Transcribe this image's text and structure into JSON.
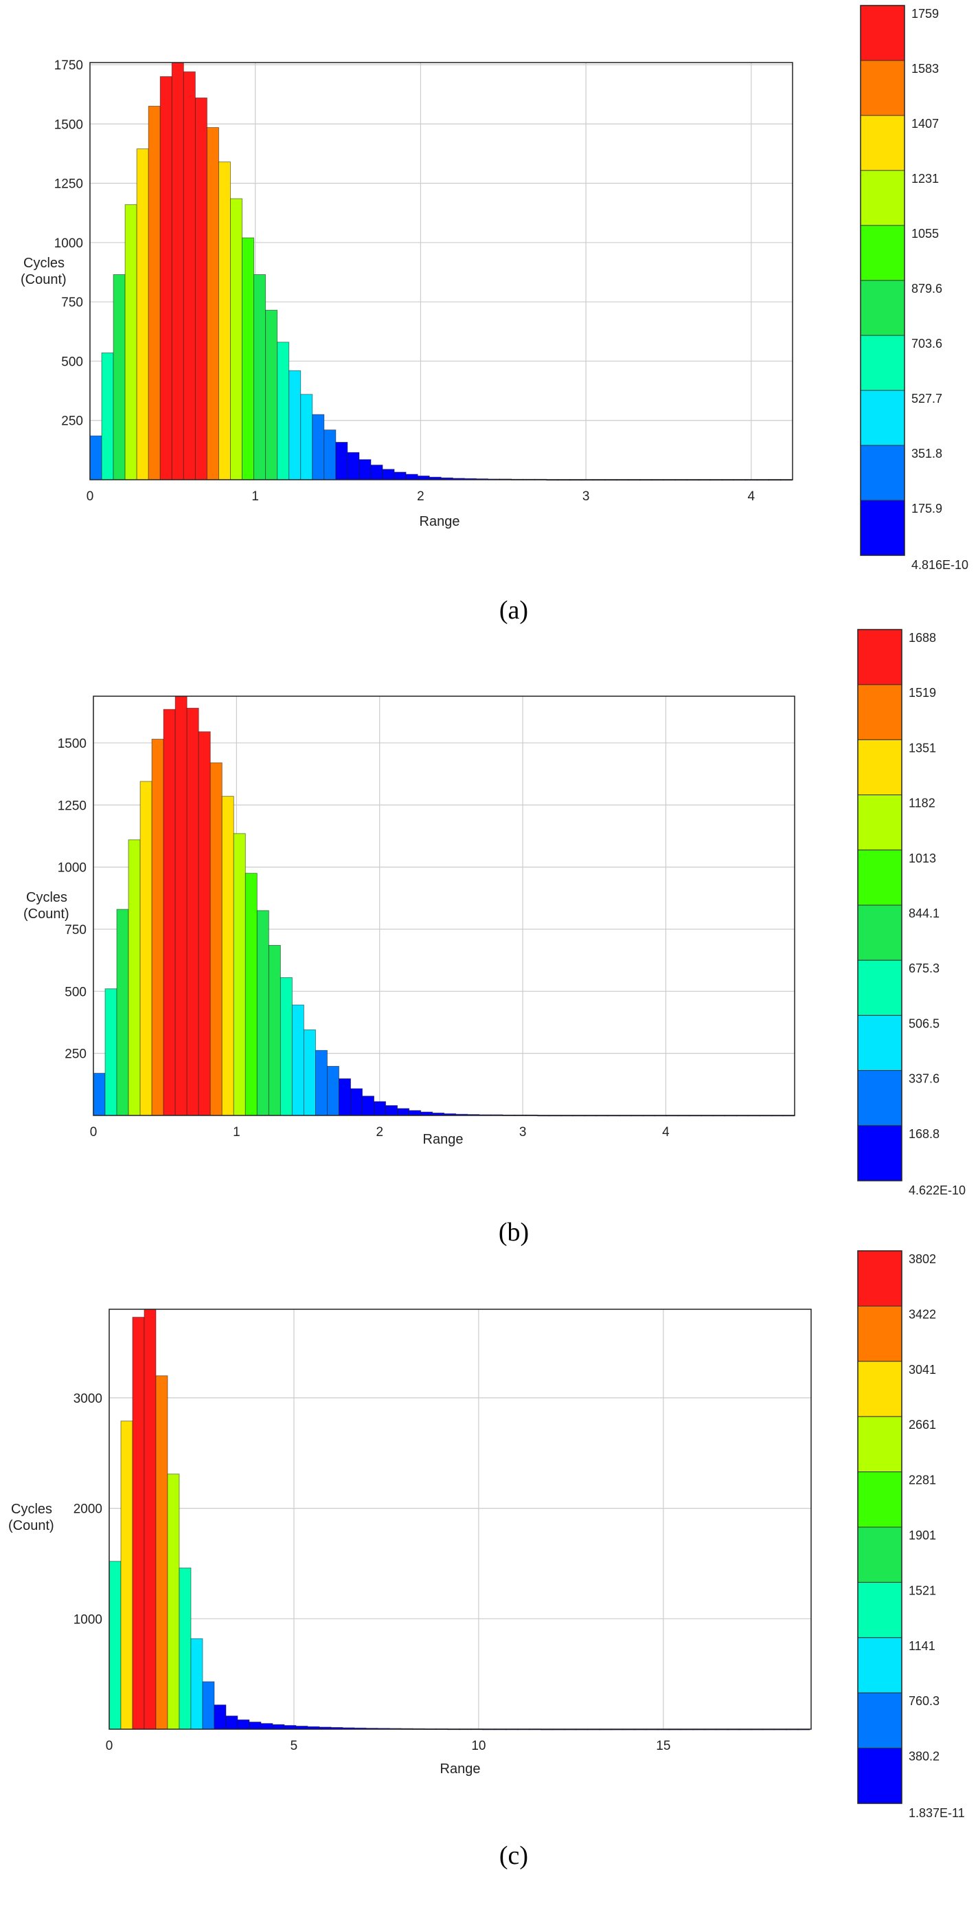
{
  "chart_data": [
    {
      "type": "bar",
      "caption": "(a)",
      "xlabel": "Range",
      "ylabel": [
        "Cycles",
        "(Count)"
      ],
      "xlim": [
        0,
        4.25
      ],
      "ylim": [
        0,
        1759
      ],
      "xticks": [
        0,
        1,
        2,
        3,
        4
      ],
      "yticks": [
        250,
        500,
        750,
        1000,
        1250,
        1500,
        1750
      ],
      "bin_width": 0.0708,
      "values": [
        185,
        535,
        865,
        1160,
        1395,
        1575,
        1700,
        1759,
        1720,
        1610,
        1485,
        1340,
        1185,
        1020,
        865,
        715,
        580,
        460,
        360,
        275,
        210,
        158,
        115,
        85,
        62,
        44,
        32,
        23,
        16,
        11,
        8,
        6,
        5,
        4,
        3,
        3,
        2,
        2,
        2,
        1,
        1,
        1,
        1,
        1,
        1,
        1,
        1,
        1,
        1,
        1,
        1,
        1,
        1,
        1,
        1,
        1,
        1,
        1,
        1,
        1
      ],
      "colorbar": {
        "labels": [
          "1759",
          "1583",
          "1407",
          "1231",
          "1055",
          "879.6",
          "703.6",
          "527.7",
          "351.8",
          "175.9",
          "4.816E-10"
        ],
        "colors": [
          "#ff1a1a",
          "#ff7a00",
          "#ffe000",
          "#b4ff00",
          "#3cff00",
          "#1ee650",
          "#00ffb0",
          "#00e6ff",
          "#0078ff",
          "#0000ff"
        ]
      }
    },
    {
      "type": "bar",
      "caption": "(b)",
      "xlabel": "Range",
      "ylabel": [
        "Cycles",
        "(Count)"
      ],
      "xlim": [
        0,
        4.9
      ],
      "ylim": [
        0,
        1688
      ],
      "xticks": [
        0,
        1,
        2,
        3,
        4
      ],
      "yticks": [
        250,
        500,
        750,
        1000,
        1250,
        1500
      ],
      "bin_width": 0.0817,
      "values": [
        170,
        510,
        830,
        1110,
        1345,
        1515,
        1635,
        1688,
        1640,
        1545,
        1420,
        1285,
        1135,
        975,
        825,
        685,
        555,
        445,
        345,
        262,
        198,
        148,
        108,
        78,
        56,
        40,
        28,
        20,
        14,
        10,
        7,
        5,
        4,
        3,
        3,
        2,
        2,
        2,
        1,
        1,
        1,
        1,
        1,
        1,
        1,
        1,
        1,
        1,
        1,
        1,
        1,
        1,
        1,
        1,
        1,
        1,
        1,
        1,
        1,
        1
      ],
      "colorbar": {
        "labels": [
          "1688",
          "1519",
          "1351",
          "1182",
          "1013",
          "844.1",
          "675.3",
          "506.5",
          "337.6",
          "168.8",
          "4.622E-10"
        ],
        "colors": [
          "#ff1a1a",
          "#ff7a00",
          "#ffe000",
          "#b4ff00",
          "#3cff00",
          "#1ee650",
          "#00ffb0",
          "#00e6ff",
          "#0078ff",
          "#0000ff"
        ]
      }
    },
    {
      "type": "bar",
      "caption": "(c)",
      "xlabel": "Range",
      "ylabel": [
        "Cycles",
        "(Count)"
      ],
      "xlim": [
        0,
        19
      ],
      "ylim": [
        0,
        3802
      ],
      "xticks": [
        0,
        5,
        10,
        15
      ],
      "yticks": [
        1000,
        2000,
        3000
      ],
      "bin_width": 0.316,
      "values": [
        1520,
        2790,
        3730,
        3802,
        3200,
        2310,
        1460,
        820,
        430,
        220,
        120,
        85,
        65,
        52,
        42,
        34,
        28,
        23,
        19,
        16,
        13,
        11,
        9,
        8,
        7,
        6,
        5,
        4,
        4,
        3,
        3,
        3,
        2,
        2,
        2,
        2,
        2,
        1,
        1,
        1,
        1,
        1,
        1,
        1,
        1,
        1,
        1,
        1,
        1,
        1,
        1,
        1,
        1,
        1,
        1,
        1,
        1,
        1,
        1,
        1
      ],
      "colorbar": {
        "labels": [
          "3802",
          "3422",
          "3041",
          "2661",
          "2281",
          "1901",
          "1521",
          "1141",
          "760.3",
          "380.2",
          "1.837E-11"
        ],
        "colors": [
          "#ff1a1a",
          "#ff7a00",
          "#ffe000",
          "#b4ff00",
          "#3cff00",
          "#1ee650",
          "#00ffb0",
          "#00e6ff",
          "#0078ff",
          "#0000ff"
        ]
      }
    }
  ]
}
